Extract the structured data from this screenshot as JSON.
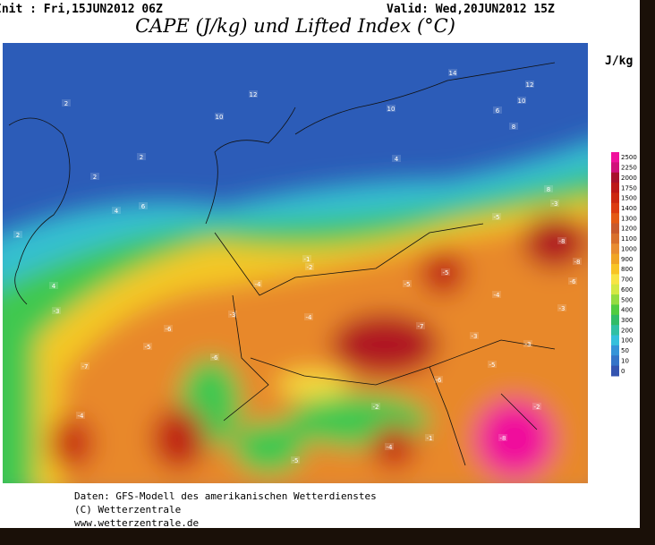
{
  "header": {
    "init": "Init : Fri,15JUN2012 06Z",
    "valid": "Valid: Wed,20JUN2012 15Z",
    "title": "CAPE (J/kg) und Lifted Index (°C)"
  },
  "legend": {
    "unit": "J/kg",
    "levels": [
      2500,
      2250,
      2000,
      1750,
      1500,
      1400,
      1300,
      1200,
      1100,
      1000,
      900,
      800,
      700,
      600,
      500,
      400,
      300,
      200,
      100,
      50,
      10,
      0
    ],
    "colors": [
      "#f0109c",
      "#d0107a",
      "#a8102c",
      "#bc1818",
      "#cc2810",
      "#dc3c10",
      "#e45a14",
      "#c85a2c",
      "#d8702c",
      "#e88c30",
      "#f0a424",
      "#f8c424",
      "#f8e444",
      "#d4e844",
      "#94dc40",
      "#50cc40",
      "#30bc68",
      "#30c0a4",
      "#34c0dc",
      "#3494d8",
      "#3474c8",
      "#3454b0"
    ]
  },
  "map_labels": [
    12,
    10,
    10,
    14,
    12,
    10,
    8,
    6,
    4,
    4,
    2,
    2,
    2,
    6,
    2,
    4,
    8,
    -3,
    -1,
    -2,
    -4,
    -3,
    -6,
    -5,
    -6,
    -8,
    -8,
    -5,
    -3,
    -4,
    -5,
    -5,
    -4,
    -7,
    -6,
    -3,
    -2,
    -1,
    -4,
    -5,
    -8,
    -5,
    -3,
    -6,
    -2,
    -3,
    -7,
    -4
  ],
  "footer": [
    "Daten: GFS-Modell des amerikanischen Wetterdienstes",
    "(C) Wetterzentrale",
    "www.wetterzentrale.de"
  ]
}
